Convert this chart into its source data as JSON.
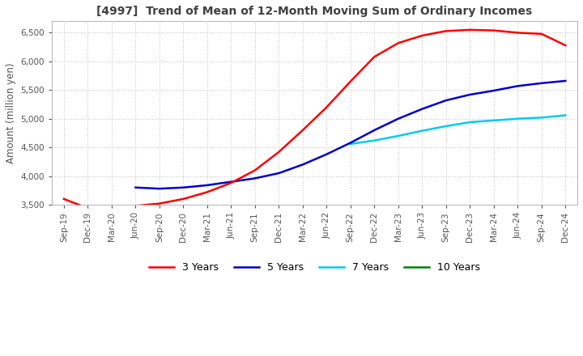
{
  "title": "[4997]  Trend of Mean of 12-Month Moving Sum of Ordinary Incomes",
  "ylabel": "Amount (million yen)",
  "ylim": [
    3500,
    6700
  ],
  "yticks": [
    3500,
    4000,
    4500,
    5000,
    5500,
    6000,
    6500
  ],
  "line_colors": {
    "3y": "#ff0000",
    "5y": "#0000cd",
    "7y": "#00ccee",
    "10y": "#008000"
  },
  "legend_labels": [
    "3 Years",
    "5 Years",
    "7 Years",
    "10 Years"
  ],
  "x_labels": [
    "Sep-19",
    "Dec-19",
    "Mar-20",
    "Jun-20",
    "Sep-20",
    "Dec-20",
    "Mar-21",
    "Jun-21",
    "Sep-21",
    "Dec-21",
    "Mar-22",
    "Jun-22",
    "Sep-22",
    "Dec-22",
    "Mar-23",
    "Jun-23",
    "Sep-23",
    "Dec-23",
    "Mar-24",
    "Jun-24",
    "Sep-24",
    "Dec-24"
  ],
  "data_3y": [
    3600,
    3440,
    3420,
    3480,
    3520,
    3600,
    3720,
    3880,
    4100,
    4420,
    4800,
    5200,
    5650,
    6080,
    6320,
    6450,
    6530,
    6550,
    6540,
    6500,
    6480,
    6280
  ],
  "data_5y": [
    null,
    null,
    null,
    3800,
    3780,
    3800,
    3840,
    3900,
    3960,
    4050,
    4200,
    4380,
    4580,
    4800,
    5000,
    5170,
    5320,
    5420,
    5490,
    5570,
    5620,
    5660
  ],
  "data_7y": [
    null,
    null,
    null,
    null,
    null,
    null,
    null,
    null,
    null,
    null,
    null,
    null,
    4560,
    4620,
    4700,
    4790,
    4870,
    4940,
    4970,
    5000,
    5020,
    5060
  ],
  "data_10y": [
    null,
    null,
    null,
    null,
    null,
    null,
    null,
    null,
    null,
    null,
    null,
    null,
    null,
    null,
    null,
    null,
    null,
    null,
    null,
    null,
    null,
    null
  ],
  "background_color": "#ffffff",
  "grid_color": "#c8c8c8",
  "title_color": "#404040",
  "tick_color": "#555555"
}
